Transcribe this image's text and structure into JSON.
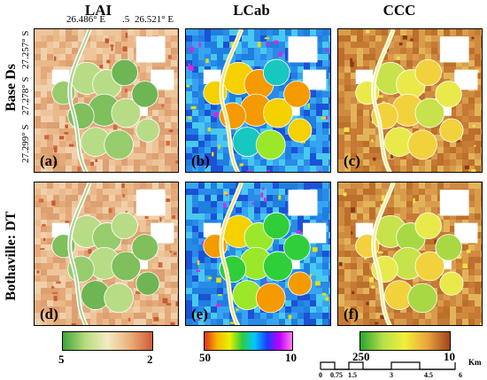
{
  "columns": {
    "lai": "LAI",
    "lcab": "LCab",
    "ccc": "CCC"
  },
  "rows": {
    "top": "Base Ds",
    "bottom": "Bothaville: DT"
  },
  "coords": {
    "x_ticks": [
      "26.486° E",
      ".5",
      "26.521° E"
    ],
    "y_ticks": [
      "27.257° S",
      "27.278° S",
      "27.299° S"
    ]
  },
  "panels": {
    "a": "(a)",
    "b": "(b)",
    "c": "(c)",
    "d": "(d)",
    "e": "(e)",
    "f": "(f)"
  },
  "colorbars": {
    "lai": {
      "left": "5",
      "right": "2"
    },
    "lcab": {
      "left": "50",
      "right": "10"
    },
    "ccc": {
      "left": "250",
      "right": "10"
    }
  },
  "scalebar": {
    "ticks": [
      "0",
      "0.75",
      "1.5",
      "3",
      "4.5",
      "6"
    ],
    "unit": "Km"
  },
  "colors": {
    "lai_ramp": [
      "#3fa43c",
      "#b7dc7c",
      "#f3ebc4",
      "#eab07a",
      "#d05a35"
    ],
    "lcab_ramp": [
      "#e0301e",
      "#f7b500",
      "#eaf100",
      "#2ecc40",
      "#00c8ff",
      "#1b3cff",
      "#c000ff",
      "#ff7be5"
    ],
    "ccc_ramp": [
      "#28a52e",
      "#b6e04a",
      "#f2ef3a",
      "#e8a43c",
      "#a0441d"
    ]
  }
}
